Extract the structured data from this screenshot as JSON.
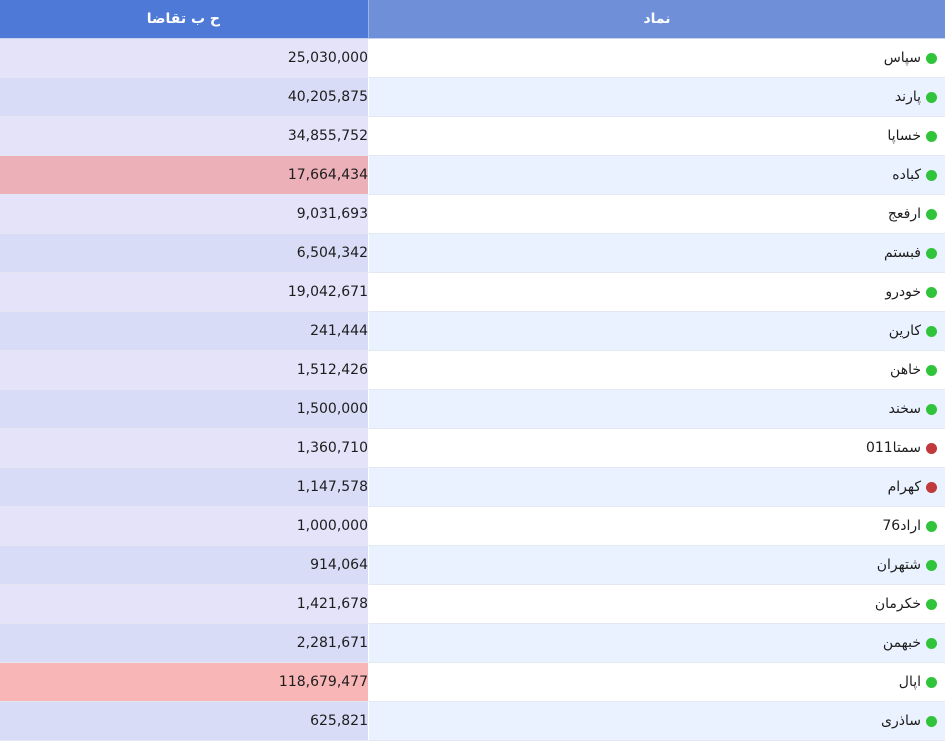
{
  "header": {
    "symbol_label": "نماد",
    "demand_label": "ح ب تقاضا"
  },
  "colors": {
    "header_symbol_bg": "#6f8fd8",
    "header_demand_bg": "#4f79d6",
    "status_green": "#2fc43a",
    "status_red": "#c0393b",
    "highlight_red_medium": "#ebb0b8",
    "highlight_red_strong": "#f8b6b7"
  },
  "rows": [
    {
      "symbol": "سپاس",
      "status": "green",
      "demand": "25,030,000",
      "highlight": ""
    },
    {
      "symbol": "پارند",
      "status": "green",
      "demand": "40,205,875",
      "highlight": ""
    },
    {
      "symbol": "خساپا",
      "status": "green",
      "demand": "34,855,752",
      "highlight": ""
    },
    {
      "symbol": "کباده",
      "status": "green",
      "demand": "17,664,434",
      "highlight": "neg-med"
    },
    {
      "symbol": "ارفعج",
      "status": "green",
      "demand": "9,031,693",
      "highlight": ""
    },
    {
      "symbol": "فبستم",
      "status": "green",
      "demand": "6,504,342",
      "highlight": ""
    },
    {
      "symbol": "خودرو",
      "status": "green",
      "demand": "19,042,671",
      "highlight": ""
    },
    {
      "symbol": "کارین",
      "status": "green",
      "demand": "241,444",
      "highlight": ""
    },
    {
      "symbol": "خاهن",
      "status": "green",
      "demand": "1,512,426",
      "highlight": ""
    },
    {
      "symbol": "سخند",
      "status": "green",
      "demand": "1,500,000",
      "highlight": ""
    },
    {
      "symbol": "سمتا011",
      "status": "red",
      "demand": "1,360,710",
      "highlight": ""
    },
    {
      "symbol": "کهرام",
      "status": "red",
      "demand": "1,147,578",
      "highlight": ""
    },
    {
      "symbol": "اراد76",
      "status": "green",
      "demand": "1,000,000",
      "highlight": ""
    },
    {
      "symbol": "شتهران",
      "status": "green",
      "demand": "914,064",
      "highlight": ""
    },
    {
      "symbol": "خکرمان",
      "status": "green",
      "demand": "1,421,678",
      "highlight": ""
    },
    {
      "symbol": "خبهمن",
      "status": "green",
      "demand": "2,281,671",
      "highlight": ""
    },
    {
      "symbol": "اپال",
      "status": "green",
      "demand": "118,679,477",
      "highlight": "neg-high"
    },
    {
      "symbol": "ساذری",
      "status": "green",
      "demand": "625,821",
      "highlight": ""
    }
  ]
}
